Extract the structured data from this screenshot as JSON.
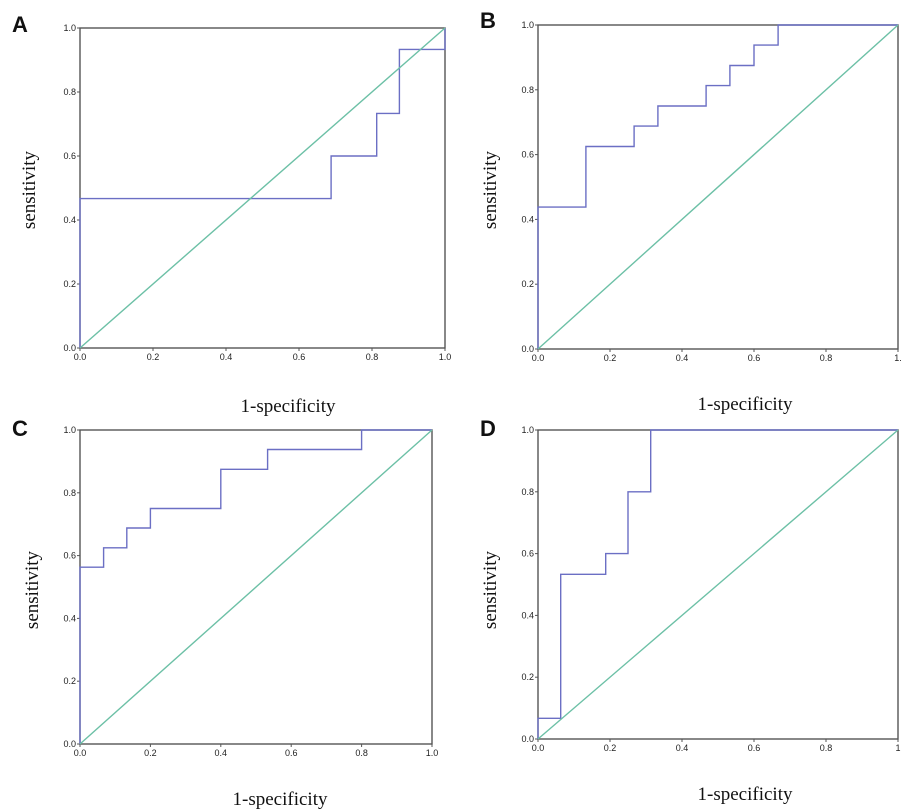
{
  "colors": {
    "roc": "#6b6fc4",
    "reference": "#6cc0a6",
    "frame": "#555555"
  },
  "chart_data": [
    {
      "type": "line",
      "panel": "A",
      "xlabel": "1-specificity",
      "ylabel": "sensitivity",
      "xlim": [
        0,
        1
      ],
      "ylim": [
        0,
        1
      ],
      "xticks": [
        "0.0",
        "0.2",
        "0.4",
        "0.6",
        "0.8",
        "1.0"
      ],
      "yticks": [
        "0.0",
        "0.2",
        "0.4",
        "0.6",
        "0.8",
        "1.0"
      ],
      "grid": false,
      "series": [
        {
          "role": "roc",
          "x": [
            0,
            0,
            0.688,
            0.688,
            0.813,
            0.813,
            0.875,
            0.875,
            1,
            1
          ],
          "y": [
            0,
            0.467,
            0.467,
            0.6,
            0.6,
            0.733,
            0.733,
            0.933,
            0.933,
            1
          ]
        },
        {
          "role": "reference",
          "x": [
            0,
            1
          ],
          "y": [
            0,
            1
          ]
        }
      ]
    },
    {
      "type": "line",
      "panel": "B",
      "xlabel": "1-specificity",
      "ylabel": "sensitivity",
      "xlim": [
        0,
        1
      ],
      "ylim": [
        0,
        1
      ],
      "xticks": [
        "0.0",
        "0.2",
        "0.4",
        "0.6",
        "0.8",
        "1."
      ],
      "yticks": [
        "0.0",
        "0.2",
        "0.4",
        "0.6",
        "0.8",
        "1.0"
      ],
      "grid": false,
      "series": [
        {
          "role": "roc",
          "x": [
            0,
            0,
            0.133,
            0.133,
            0.267,
            0.267,
            0.333,
            0.333,
            0.467,
            0.467,
            0.533,
            0.533,
            0.6,
            0.6,
            0.667,
            0.667,
            1
          ],
          "y": [
            0,
            0.438,
            0.438,
            0.625,
            0.625,
            0.688,
            0.688,
            0.75,
            0.75,
            0.813,
            0.813,
            0.875,
            0.875,
            0.938,
            0.938,
            1,
            1
          ]
        },
        {
          "role": "reference",
          "x": [
            0,
            1
          ],
          "y": [
            0,
            1
          ]
        }
      ]
    },
    {
      "type": "line",
      "panel": "C",
      "xlabel": "1-specificity",
      "ylabel": "sensitivity",
      "xlim": [
        0,
        1
      ],
      "ylim": [
        0,
        1
      ],
      "xticks": [
        "0.0",
        "0.2",
        "0.4",
        "0.6",
        "0.8",
        "1.0"
      ],
      "yticks": [
        "0.0",
        "0.2",
        "0.4",
        "0.6",
        "0.8",
        "1.0"
      ],
      "grid": false,
      "series": [
        {
          "role": "roc",
          "x": [
            0,
            0,
            0.067,
            0.067,
            0.133,
            0.133,
            0.2,
            0.2,
            0.4,
            0.4,
            0.533,
            0.533,
            0.8,
            0.8,
            1
          ],
          "y": [
            0,
            0.563,
            0.563,
            0.625,
            0.625,
            0.688,
            0.688,
            0.75,
            0.75,
            0.875,
            0.875,
            0.938,
            0.938,
            1,
            1
          ]
        },
        {
          "role": "reference",
          "x": [
            0,
            1
          ],
          "y": [
            0,
            1
          ]
        }
      ]
    },
    {
      "type": "line",
      "panel": "D",
      "xlabel": "1-specificity",
      "ylabel": "sensitivity",
      "xlim": [
        0,
        1
      ],
      "ylim": [
        0,
        1
      ],
      "xticks": [
        "0.0",
        "0.2",
        "0.4",
        "0.6",
        "0.8",
        "1"
      ],
      "yticks": [
        "0.0",
        "0.2",
        "0.4",
        "0.6",
        "0.8",
        "1.0"
      ],
      "grid": false,
      "series": [
        {
          "role": "roc",
          "x": [
            0,
            0,
            0.063,
            0.063,
            0.188,
            0.188,
            0.25,
            0.25,
            0.313,
            0.313,
            1
          ],
          "y": [
            0,
            0.067,
            0.067,
            0.533,
            0.533,
            0.6,
            0.6,
            0.8,
            0.8,
            1,
            1
          ]
        },
        {
          "role": "reference",
          "x": [
            0,
            1
          ],
          "y": [
            0,
            1
          ]
        }
      ]
    }
  ]
}
